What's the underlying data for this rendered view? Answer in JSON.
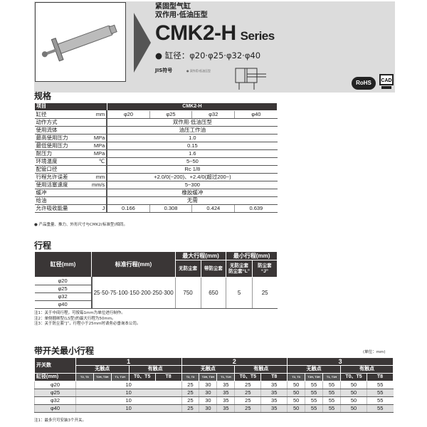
{
  "header": {
    "subtitle1": "紧固型气缸",
    "subtitle2": "双作用·低油压型",
    "series_model": "CMK2-H",
    "series_word": "Series",
    "bore_label": "● 缸径：φ20·φ25·φ32·φ40",
    "jis_label": "JIS符号",
    "jis_note": "● 双作用·低油压型",
    "rohs": "RoHS",
    "cad": "CAD"
  },
  "spec": {
    "title": "规格",
    "head": [
      "项目",
      "CMK2-H"
    ],
    "rows": [
      [
        "缸径",
        "mm",
        [
          "φ20",
          "φ25",
          "φ32",
          "φ40"
        ]
      ],
      [
        "动作方式",
        "",
        "双作用·低油压型"
      ],
      [
        "使用流体",
        "",
        "油压工作油"
      ],
      [
        "最高使用压力",
        "MPa",
        "1.0"
      ],
      [
        "最低使用压力",
        "MPa",
        "0.15"
      ],
      [
        "耐压力",
        "MPa",
        "1.6"
      ],
      [
        "环境温度",
        "℃",
        "5~50"
      ],
      [
        "配管口径",
        "",
        "Rc 1/8"
      ],
      [
        "行程允许误差",
        "mm",
        "+2.0/0(~200)、+2.4/0(超过200~)"
      ],
      [
        "使用活塞速度",
        "mm/s",
        "5~300"
      ],
      [
        "缓冲",
        "",
        "橡胶缓冲"
      ],
      [
        "给油",
        "",
        "无需"
      ],
      [
        "允许吸收能量",
        "J",
        [
          "0.166",
          "0.308",
          "0.424",
          "0.639"
        ]
      ]
    ],
    "note": "● 产品重量、推力、外形尺寸与CMK2(标准型)相同。"
  },
  "stroke": {
    "title": "行程",
    "h_bore": "缸径(mm)",
    "h_std": "标准行程(mm)",
    "h_max": "最大行程(mm)",
    "h_min": "最小行程(mm)",
    "h_max_a": "无防尘套",
    "h_max_b": "带防尘套",
    "h_min_a": "无防尘套 防尘套“L”",
    "h_min_b": "防尘套 “J”",
    "bores": [
      "φ20",
      "φ25",
      "φ32",
      "φ40"
    ],
    "std": "25·50·75·100·150·200·250·300",
    "max_a": "750",
    "max_b": "650",
    "min_a": "5",
    "min_b": "25",
    "notes": [
      "注1：关于中间行程，可按每1mm为单位进行制作。",
      "注2：单侧捆绑型(LS型)的最大行程为50mm。",
      "注3：关于防尘套“J”，行程小于25mm时请务必垂询本公司。"
    ]
  },
  "switch": {
    "title": "带开关最小行程",
    "unit": "(单位：mm)",
    "h_count": "开关数",
    "h_bore": "缸径(mm)",
    "groups": [
      "1",
      "2",
      "3"
    ],
    "contactless": "无触点",
    "contact": "有触点",
    "types": [
      "T2, T3",
      "T2H, T3H",
      "T1, T1H",
      "T0、T5",
      "T8"
    ],
    "rows": [
      {
        "bore": "φ20",
        "g1": "10",
        "g2": [
          "25",
          "30",
          "35",
          "25",
          "35"
        ],
        "g3": [
          "50",
          "55",
          "55",
          "50",
          "55"
        ]
      },
      {
        "bore": "φ25",
        "g1": "10",
        "g2": [
          "25",
          "30",
          "35",
          "25",
          "35"
        ],
        "g3": [
          "50",
          "55",
          "55",
          "50",
          "55"
        ]
      },
      {
        "bore": "φ32",
        "g1": "10",
        "g2": [
          "25",
          "30",
          "35",
          "25",
          "35"
        ],
        "g3": [
          "50",
          "55",
          "55",
          "50",
          "55"
        ]
      },
      {
        "bore": "φ40",
        "g1": "10",
        "g2": [
          "25",
          "30",
          "35",
          "25",
          "35"
        ],
        "g3": [
          "50",
          "55",
          "55",
          "50",
          "55"
        ]
      }
    ],
    "note": "注1：最多只可安装3个开关。"
  }
}
